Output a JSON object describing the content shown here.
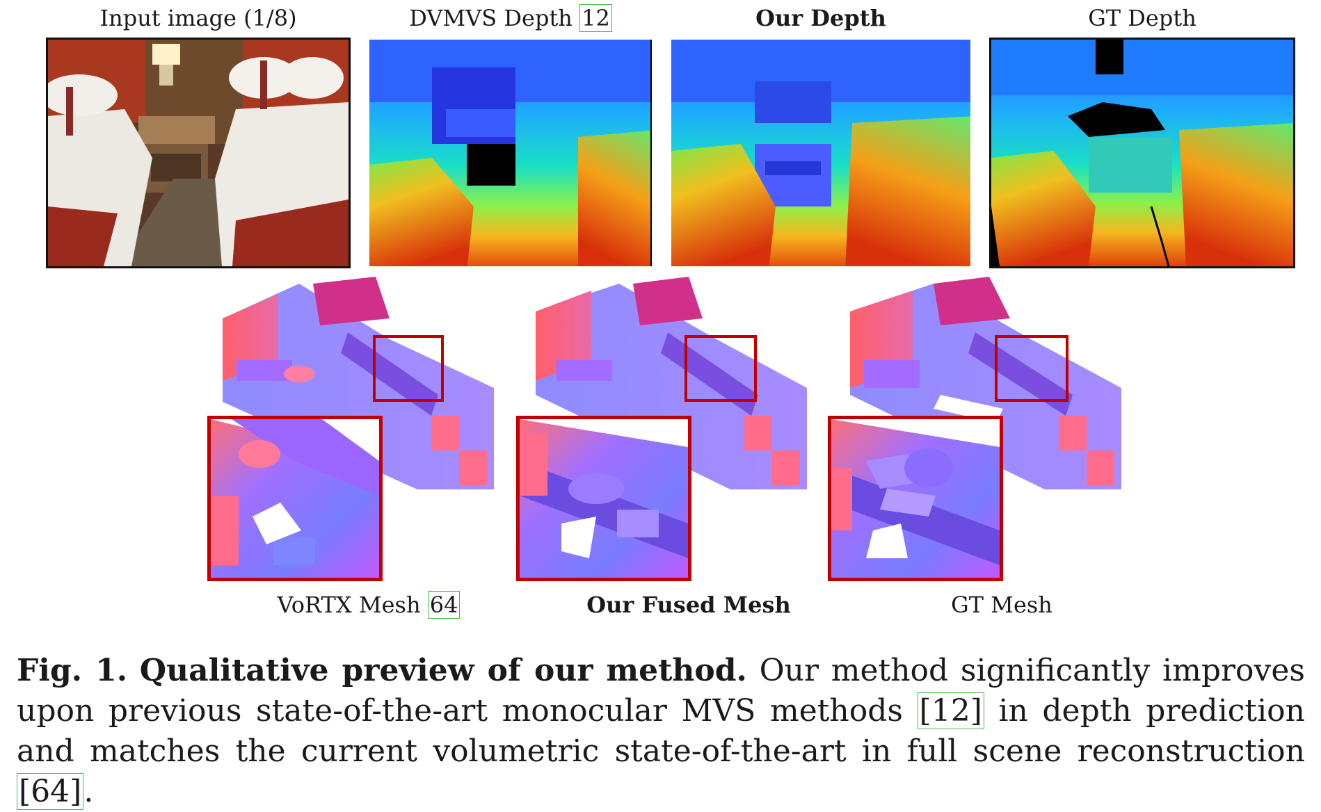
{
  "top_row": {
    "labels": [
      {
        "name": "input",
        "text": "Input image (1/8)"
      },
      {
        "name": "dvmvs",
        "text": "DVMVS Depth",
        "cite": "12"
      },
      {
        "name": "ours",
        "text": "Our Depth"
      },
      {
        "name": "gt",
        "text": "GT Depth"
      }
    ]
  },
  "bottom_row": {
    "labels": [
      {
        "name": "vortx",
        "text": "VoRTX Mesh",
        "cite": "64"
      },
      {
        "name": "fused",
        "text": "Our Fused Mesh"
      },
      {
        "name": "gt-mesh",
        "text": "GT Mesh"
      }
    ]
  },
  "caption": {
    "fig": "Fig. 1.",
    "title": "Qualitative preview of our method.",
    "text1": "Our method significantly improves upon previous state-of-the-art monocular MVS methods ",
    "cite1": "[12]",
    "text2": " in depth prediction and matches the current volumetric state-of-the-art in full scene reconstruction ",
    "cite2": "[64]",
    "text3": "."
  },
  "colors": {
    "zoom_border": "#c00000",
    "cite_box": "#3fbf3f"
  }
}
